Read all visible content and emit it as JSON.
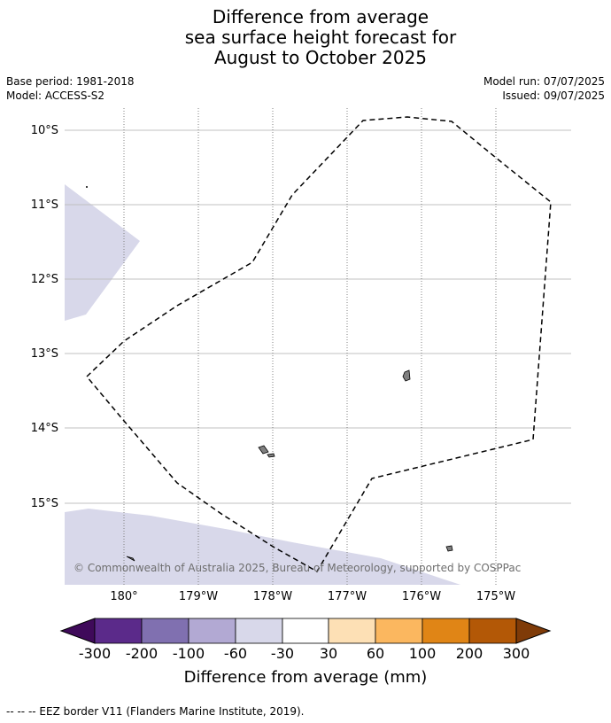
{
  "title": {
    "line1": "Difference from average",
    "line2": "sea surface height forecast for",
    "line3": "August to October 2025"
  },
  "meta": {
    "base_period": "Base period: 1981-2018",
    "model": "Model: ACCESS-S2",
    "model_run": "Model run: 07/07/2025",
    "issued": "Issued: 09/07/2025"
  },
  "map": {
    "lat_labels": [
      "10°S",
      "11°S",
      "12°S",
      "13°S",
      "14°S",
      "15°S"
    ],
    "lon_labels": [
      "180°",
      "179°W",
      "178°W",
      "177°W",
      "176°W",
      "175°W"
    ],
    "copyright": "© Commonwealth of Australia 2025, Bureau of Meteorology, supported by COSPPac"
  },
  "colorbar": {
    "ticks": [
      "-300",
      "-200",
      "-100",
      "-60",
      "-30",
      "30",
      "60",
      "100",
      "200",
      "300"
    ],
    "colors": [
      "#3f0a5a",
      "#5b2a8a",
      "#8070b0",
      "#b2a9d3",
      "#d8d8ea",
      "#ffffff",
      "#fde0b5",
      "#fbb75f",
      "#e08516",
      "#b35806",
      "#7f3b08"
    ],
    "label": "Difference from average (mm)"
  },
  "footnote": "--  --  -- EEZ border V11 (Flanders Marine Institute, 2019)."
}
